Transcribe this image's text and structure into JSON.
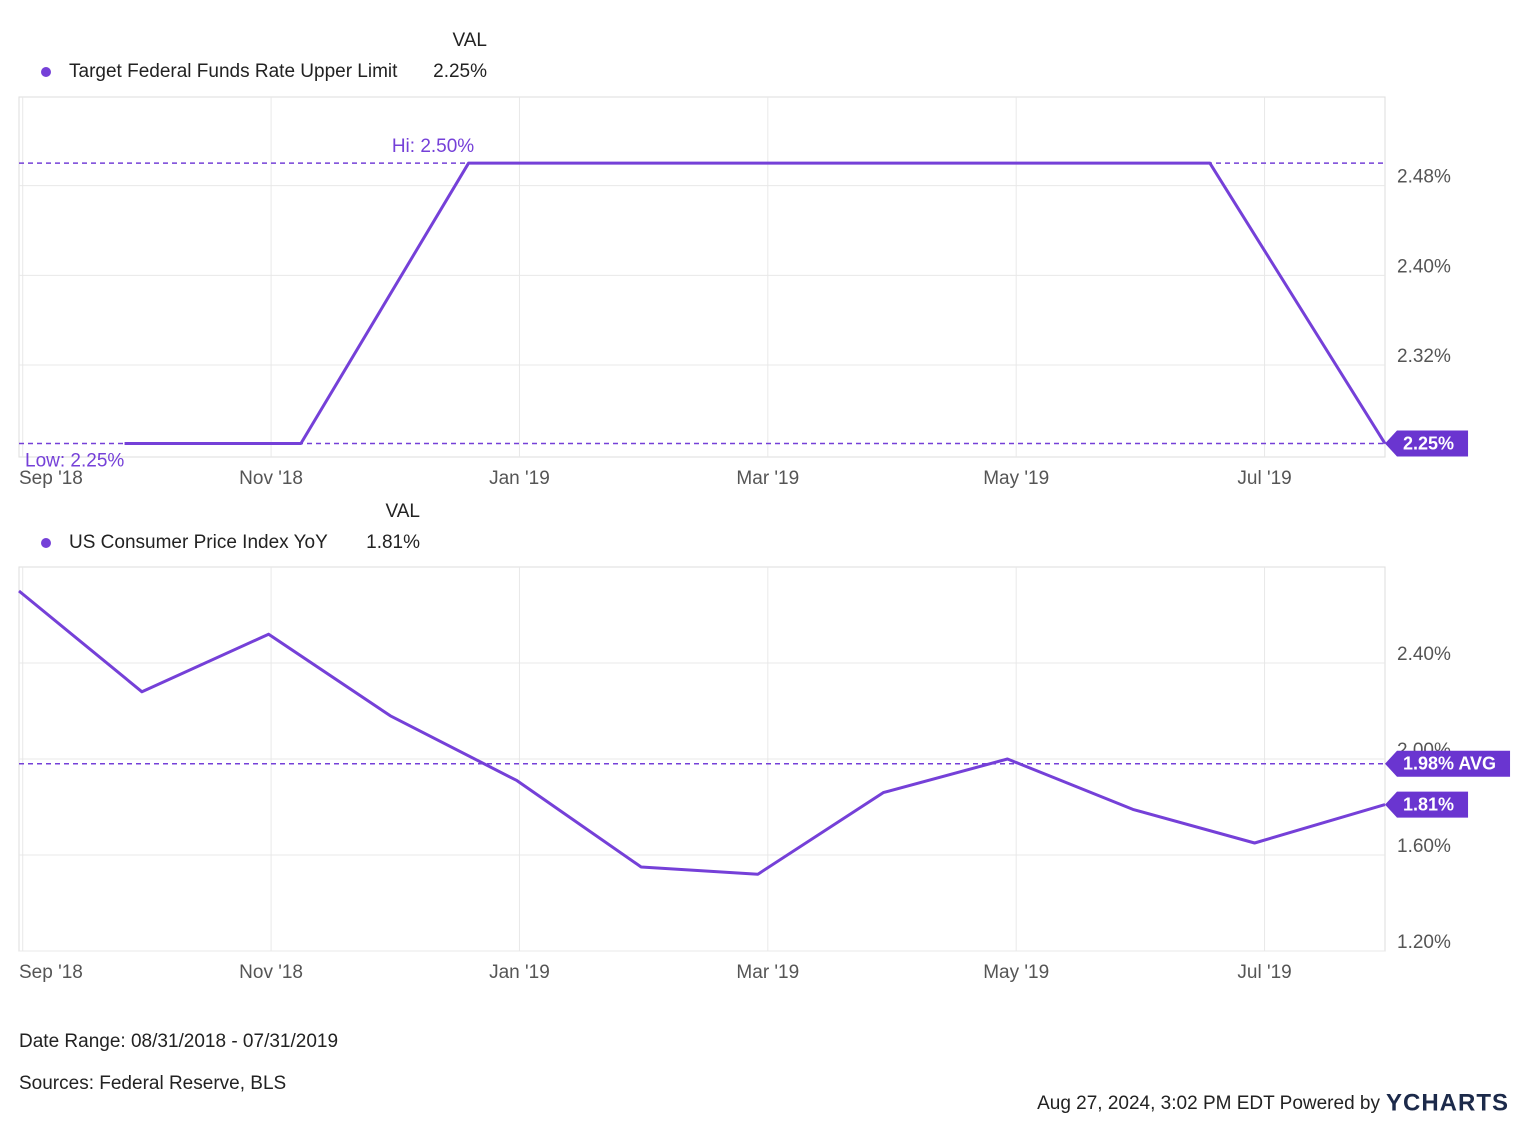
{
  "chart_data": [
    {
      "type": "line",
      "value_header": "VAL",
      "series": [
        {
          "name": "Target Federal Funds Rate Upper Limit",
          "color": "#7540d8",
          "x": [
            0.82,
            2.24,
            3.59,
            9.56,
            10.97
          ],
          "values": [
            2.25,
            2.25,
            2.5,
            2.5,
            2.25
          ]
        }
      ],
      "current": {
        "value": 2.25,
        "label": "2.25%"
      },
      "hi": {
        "value": 2.5,
        "label": "Hi: 2.50%"
      },
      "low": {
        "value": 2.25,
        "label": "Low: 2.25%"
      },
      "xlim": [
        -0.03,
        10.97
      ],
      "xticks": [
        {
          "value": 0,
          "label": "Sep '18"
        },
        {
          "value": 2,
          "label": "Nov '18"
        },
        {
          "value": 4,
          "label": "Jan '19"
        },
        {
          "value": 6,
          "label": "Mar '19"
        },
        {
          "value": 8,
          "label": "May '19"
        },
        {
          "value": 10,
          "label": "Jul '19"
        }
      ],
      "ylim": [
        2.238,
        2.559
      ],
      "yticks": [
        {
          "value": 2.32,
          "label": "2.32%"
        },
        {
          "value": 2.4,
          "label": "2.40%"
        },
        {
          "value": 2.48,
          "label": "2.48%"
        }
      ],
      "grid": true
    },
    {
      "type": "line",
      "value_header": "VAL",
      "series": [
        {
          "name": "US Consumer Price Index YoY",
          "color": "#7540d8",
          "x": [
            -0.03,
            0.96,
            1.98,
            2.96,
            3.98,
            4.98,
            5.92,
            6.93,
            7.93,
            8.94,
            9.92,
            10.97
          ],
          "values": [
            2.7,
            2.28,
            2.52,
            2.18,
            1.91,
            1.55,
            1.52,
            1.86,
            2.0,
            1.79,
            1.65,
            1.81
          ]
        }
      ],
      "current": {
        "value": 1.81,
        "label": "1.81%"
      },
      "average": {
        "value": 1.98,
        "label": "1.98% AVG"
      },
      "xlim": [
        -0.03,
        10.97
      ],
      "xticks": [
        {
          "value": 0,
          "label": "Sep '18"
        },
        {
          "value": 2,
          "label": "Nov '18"
        },
        {
          "value": 4,
          "label": "Jan '19"
        },
        {
          "value": 6,
          "label": "Mar '19"
        },
        {
          "value": 8,
          "label": "May '19"
        },
        {
          "value": 10,
          "label": "Jul '19"
        }
      ],
      "ylim": [
        1.2,
        2.8
      ],
      "yticks": [
        {
          "value": 1.2,
          "label": "1.20%"
        },
        {
          "value": 1.6,
          "label": "1.60%"
        },
        {
          "value": 2.0,
          "label": "2.00%"
        },
        {
          "value": 2.4,
          "label": "2.40%"
        }
      ],
      "grid": true
    }
  ],
  "footer": {
    "date_range": "Date Range: 08/31/2018 - 07/31/2019",
    "sources": "Sources: Federal Reserve, BLS",
    "timestamp": "Aug 27, 2024, 3:02 PM EDT Powered by",
    "brand": "YCHARTS"
  }
}
